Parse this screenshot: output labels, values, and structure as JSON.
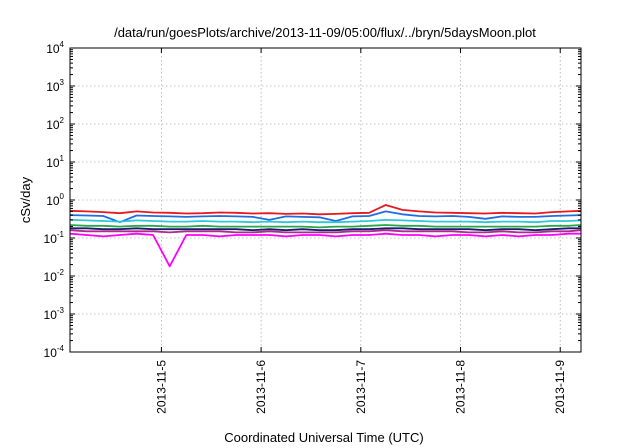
{
  "chart_data": {
    "type": "line",
    "title": "/data/run/goesPlots/archive/2013-11-09/05:00/flux/../bryn/5daysMoon.plot",
    "xlabel": "Coordinated Universal Time (UTC)",
    "ylabel": "cSv/day",
    "yscale": "log",
    "ylim": [
      0.0001,
      10000
    ],
    "xlim": [
      "2013-11-04 02:00",
      "2013-11-09 05:00"
    ],
    "grid": true,
    "legend": "none",
    "x_ticks": [
      "2013-11-5",
      "2013-11-6",
      "2013-11-7",
      "2013-11-8",
      "2013-11-9"
    ],
    "y_ticks": [
      {
        "base": "10",
        "exp": "-4"
      },
      {
        "base": "10",
        "exp": "-3"
      },
      {
        "base": "10",
        "exp": "-2"
      },
      {
        "base": "10",
        "exp": "-1"
      },
      {
        "base": "10",
        "exp": "0"
      },
      {
        "base": "10",
        "exp": "1"
      },
      {
        "base": "10",
        "exp": "2"
      },
      {
        "base": "10",
        "exp": "3"
      },
      {
        "base": "10",
        "exp": "4"
      }
    ],
    "x": [
      "2013-11-04 02:00",
      "2013-11-04 06:00",
      "2013-11-04 10:00",
      "2013-11-04 14:00",
      "2013-11-04 18:00",
      "2013-11-04 22:00",
      "2013-11-05 02:00",
      "2013-11-05 06:00",
      "2013-11-05 10:00",
      "2013-11-05 14:00",
      "2013-11-05 18:00",
      "2013-11-05 22:00",
      "2013-11-06 02:00",
      "2013-11-06 06:00",
      "2013-11-06 10:00",
      "2013-11-06 14:00",
      "2013-11-06 18:00",
      "2013-11-06 22:00",
      "2013-11-07 02:00",
      "2013-11-07 06:00",
      "2013-11-07 10:00",
      "2013-11-07 14:00",
      "2013-11-07 18:00",
      "2013-11-07 22:00",
      "2013-11-08 02:00",
      "2013-11-08 06:00",
      "2013-11-08 10:00",
      "2013-11-08 14:00",
      "2013-11-08 18:00",
      "2013-11-08 22:00",
      "2013-11-09 02:00",
      "2013-11-09 05:00"
    ],
    "series": [
      {
        "color": "#e8191e",
        "values": [
          0.52,
          0.5,
          0.48,
          0.45,
          0.5,
          0.47,
          0.46,
          0.44,
          0.45,
          0.47,
          0.46,
          0.44,
          0.45,
          0.43,
          0.44,
          0.42,
          0.43,
          0.45,
          0.46,
          0.74,
          0.55,
          0.5,
          0.47,
          0.46,
          0.45,
          0.44,
          0.46,
          0.45,
          0.44,
          0.48,
          0.5,
          0.52
        ]
      },
      {
        "color": "#1f6ee0",
        "values": [
          0.4,
          0.39,
          0.38,
          0.26,
          0.39,
          0.38,
          0.37,
          0.36,
          0.37,
          0.38,
          0.37,
          0.36,
          0.3,
          0.37,
          0.36,
          0.35,
          0.28,
          0.37,
          0.38,
          0.5,
          0.42,
          0.38,
          0.37,
          0.38,
          0.36,
          0.32,
          0.37,
          0.36,
          0.36,
          0.38,
          0.39,
          0.4
        ]
      },
      {
        "color": "#2cc8d8",
        "values": [
          0.3,
          0.29,
          0.28,
          0.27,
          0.29,
          0.28,
          0.27,
          0.27,
          0.28,
          0.27,
          0.27,
          0.26,
          0.27,
          0.26,
          0.27,
          0.26,
          0.26,
          0.27,
          0.28,
          0.3,
          0.29,
          0.28,
          0.27,
          0.27,
          0.27,
          0.26,
          0.27,
          0.27,
          0.26,
          0.28,
          0.28,
          0.29
        ]
      },
      {
        "color": "#28a64a",
        "values": [
          0.22,
          0.21,
          0.21,
          0.2,
          0.21,
          0.21,
          0.2,
          0.2,
          0.21,
          0.2,
          0.2,
          0.2,
          0.2,
          0.2,
          0.2,
          0.19,
          0.2,
          0.2,
          0.21,
          0.22,
          0.21,
          0.21,
          0.2,
          0.2,
          0.2,
          0.2,
          0.2,
          0.2,
          0.2,
          0.21,
          0.21,
          0.22
        ]
      },
      {
        "color": "#1b1b6e",
        "values": [
          0.18,
          0.18,
          0.17,
          0.17,
          0.18,
          0.17,
          0.17,
          0.17,
          0.17,
          0.17,
          0.17,
          0.16,
          0.17,
          0.16,
          0.17,
          0.16,
          0.16,
          0.17,
          0.17,
          0.18,
          0.18,
          0.17,
          0.17,
          0.17,
          0.17,
          0.16,
          0.17,
          0.17,
          0.16,
          0.17,
          0.18,
          0.18
        ]
      },
      {
        "color": "#b02a8a",
        "values": [
          0.16,
          0.15,
          0.15,
          0.15,
          0.15,
          0.15,
          0.14,
          0.15,
          0.15,
          0.15,
          0.14,
          0.14,
          0.15,
          0.14,
          0.14,
          0.14,
          0.14,
          0.15,
          0.15,
          0.16,
          0.15,
          0.15,
          0.15,
          0.15,
          0.14,
          0.14,
          0.15,
          0.14,
          0.14,
          0.15,
          0.15,
          0.16
        ]
      },
      {
        "color": "#ff00ff",
        "values": [
          0.13,
          0.12,
          0.11,
          0.12,
          0.13,
          0.12,
          0.018,
          0.12,
          0.12,
          0.11,
          0.12,
          0.12,
          0.12,
          0.11,
          0.12,
          0.12,
          0.11,
          0.12,
          0.12,
          0.13,
          0.12,
          0.12,
          0.11,
          0.12,
          0.12,
          0.11,
          0.12,
          0.11,
          0.12,
          0.12,
          0.13,
          0.13
        ]
      }
    ]
  }
}
